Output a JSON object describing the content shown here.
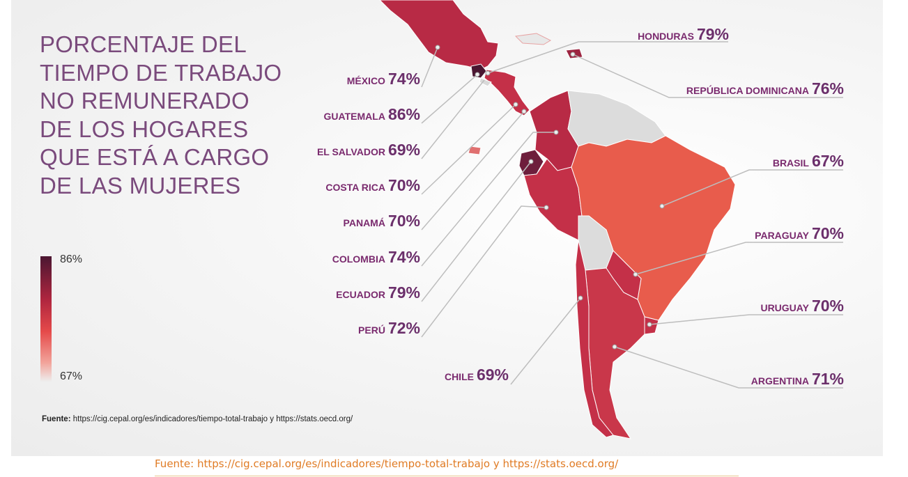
{
  "title_lines": [
    "PORCENTAJE DEL",
    "TIEMPO DE TRABAJO",
    "NO REMUNERADO",
    "DE LOS HOGARES",
    "QUE ESTÁ A CARGO",
    "DE LAS MUJERES"
  ],
  "legend": {
    "max_label": "86%",
    "min_label": "67%",
    "max_color": "#4b1631",
    "min_color": "#eeeeee"
  },
  "source_inner": {
    "prefix": "Fuente:",
    "text": "https://cig.cepal.org/es/indicadores/tiempo-total-trabajo y https://stats.oecd.org/"
  },
  "caption": "Fuente: https://cig.cepal.org/es/indicadores/tiempo-total-trabajo y https://stats.oecd.org/",
  "countries": {
    "mexico": {
      "name": "MÉXICO",
      "value": "74%"
    },
    "guatemala": {
      "name": "GUATEMALA",
      "value": "86%"
    },
    "el_salvador": {
      "name": "EL SALVADOR",
      "value": "69%"
    },
    "costa_rica": {
      "name": "COSTA RICA",
      "value": "70%"
    },
    "panama": {
      "name": "PANAMÁ",
      "value": "70%"
    },
    "colombia": {
      "name": "COLOMBIA",
      "value": "74%"
    },
    "ecuador": {
      "name": "ECUADOR",
      "value": "79%"
    },
    "peru": {
      "name": "PERÚ",
      "value": "72%"
    },
    "chile": {
      "name": "CHILE",
      "value": "69%"
    },
    "honduras": {
      "name": "HONDURAS",
      "value": "79%"
    },
    "rep_dominicana": {
      "name": "REPÚBLICA DOMINICANA",
      "value": "76%"
    },
    "brasil": {
      "name": "BRASIL",
      "value": "67%"
    },
    "paraguay": {
      "name": "PARAGUAY",
      "value": "70%"
    },
    "uruguay": {
      "name": "URUGUAY",
      "value": "70%"
    },
    "argentina": {
      "name": "ARGENTINA",
      "value": "71%"
    }
  },
  "colors": {
    "title": "#7a4a7c",
    "label_name": "#7a2a6e",
    "caption": "#e07b24",
    "no_data": "#dddddd"
  }
}
